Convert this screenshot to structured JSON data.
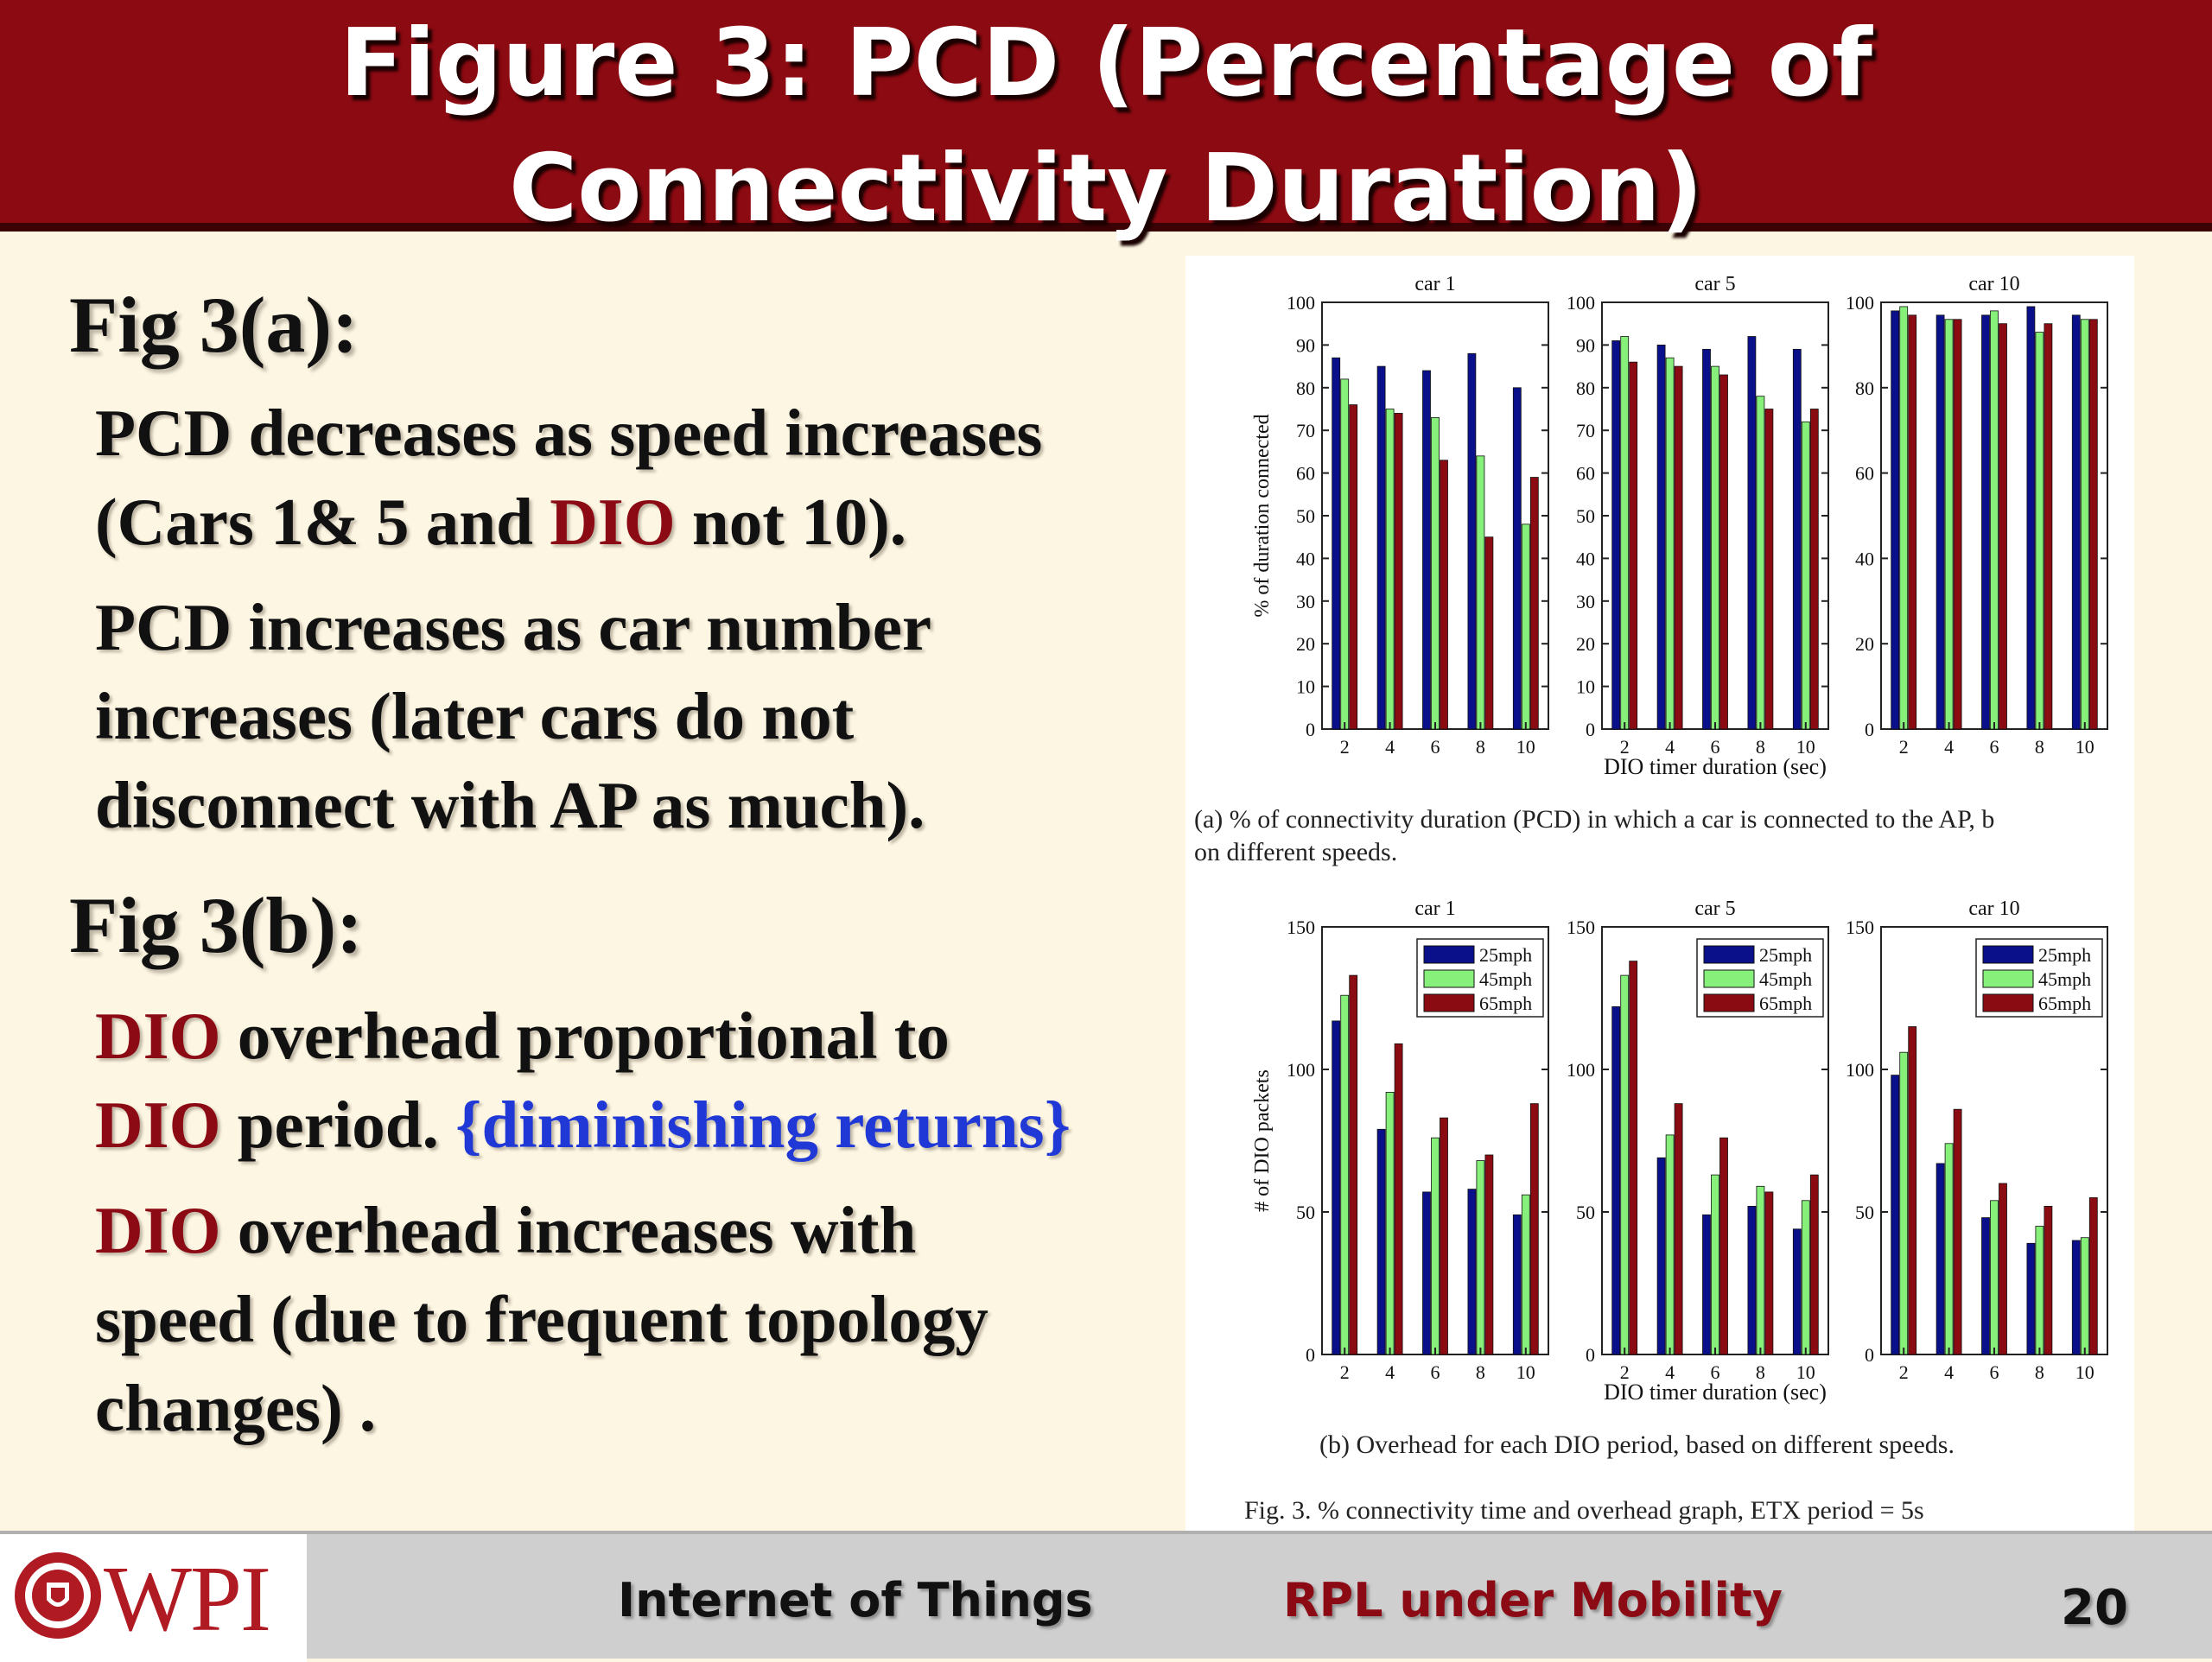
{
  "title": {
    "line1": "Figure 3: PCD (Percentage of",
    "line2": "Connectivity Duration)"
  },
  "left": {
    "fig_a_heading": "Fig 3(a):",
    "fig_a_p1": [
      {
        "text": "PCD decreases as speed increases",
        "color": "#111111"
      },
      {
        "text": "(Cars 1& 5 and ",
        "color": "#111111"
      },
      {
        "text": "DIO",
        "color": "#8b0a14"
      },
      {
        "text": " not 10).",
        "color": "#111111"
      }
    ],
    "fig_a_p2_lines": [
      "PCD increases as car number",
      "increases  (later cars do not",
      "disconnect with AP as much)."
    ],
    "fig_b_heading": "Fig 3(b):",
    "fig_b_p1": {
      "dio1": "DIO",
      "rest1": " overhead proportional to",
      "dio2": "DIO",
      "rest2": " period. ",
      "note": "{diminishing returns}"
    },
    "fig_b_p2": {
      "dio": "DIO",
      "rest1": " overhead increases with",
      "line2": "speed (due to frequent topology",
      "line3": "changes) ."
    }
  },
  "figure": {
    "caption_a_line1": "(a) % of connectivity duration (PCD) in which a car is connected to the AP, b",
    "caption_a_line2": "on different speeds.",
    "caption_b": "(b) Overhead for each DIO period, based on different speeds.",
    "caption_fig": "Fig. 3.   % connectivity time and overhead graph, ETX period = 5s"
  },
  "footer": {
    "logo_text": "WPI",
    "course": "Internet of Things",
    "topic": "RPL under Mobility",
    "page": "20"
  },
  "colors": {
    "title_bg": "#8c0a12",
    "accent_red": "#8b0a14",
    "accent_blue": "#1f38d6",
    "s25": "#0a0f8a",
    "s45": "#86f07a",
    "s65": "#8a0b12"
  },
  "chart_data": [
    {
      "type": "bar",
      "id": "pcd",
      "ylabel": "% of duration connected",
      "xlabel": "DIO timer duration (sec)",
      "panels": [
        {
          "title": "car 1",
          "categories": [
            "2",
            "4",
            "6",
            "8",
            "10"
          ],
          "ylim": [
            0,
            100
          ],
          "yticks": [
            0,
            10,
            20,
            30,
            40,
            50,
            60,
            70,
            80,
            90,
            100
          ],
          "series": [
            {
              "name": "25mph",
              "values": [
                87,
                85,
                84,
                88,
                80
              ]
            },
            {
              "name": "45mph",
              "values": [
                82,
                75,
                73,
                64,
                48
              ]
            },
            {
              "name": "65mph",
              "values": [
                76,
                74,
                63,
                45,
                59
              ]
            }
          ]
        },
        {
          "title": "car 5",
          "categories": [
            "2",
            "4",
            "6",
            "8",
            "10"
          ],
          "ylim": [
            0,
            100
          ],
          "yticks": [
            0,
            10,
            20,
            30,
            40,
            50,
            60,
            70,
            80,
            90,
            100
          ],
          "series": [
            {
              "name": "25mph",
              "values": [
                91,
                90,
                89,
                92,
                89
              ]
            },
            {
              "name": "45mph",
              "values": [
                92,
                87,
                85,
                78,
                72
              ]
            },
            {
              "name": "65mph",
              "values": [
                86,
                85,
                83,
                75,
                75
              ]
            }
          ]
        },
        {
          "title": "car 10",
          "categories": [
            "2",
            "4",
            "6",
            "8",
            "10"
          ],
          "ylim": [
            0,
            100
          ],
          "yticks": [
            0,
            20,
            40,
            60,
            80,
            100
          ],
          "series": [
            {
              "name": "25mph",
              "values": [
                98,
                97,
                97,
                99,
                97
              ]
            },
            {
              "name": "45mph",
              "values": [
                99,
                96,
                98,
                93,
                96
              ]
            },
            {
              "name": "65mph",
              "values": [
                97,
                96,
                95,
                95,
                96
              ]
            }
          ]
        }
      ]
    },
    {
      "type": "bar",
      "id": "overhead",
      "ylabel": "# of DIO packets",
      "xlabel": "DIO timer duration (sec)",
      "legend": [
        "25mph",
        "45mph",
        "65mph"
      ],
      "legend_position": "top-right",
      "panels": [
        {
          "title": "car 1",
          "categories": [
            "2",
            "4",
            "6",
            "8",
            "10"
          ],
          "ylim": [
            0,
            150
          ],
          "yticks": [
            0,
            50,
            100,
            150
          ],
          "series": [
            {
              "name": "25mph",
              "values": [
                117,
                79,
                57,
                58,
                49
              ]
            },
            {
              "name": "45mph",
              "values": [
                126,
                92,
                76,
                68,
                56
              ]
            },
            {
              "name": "65mph",
              "values": [
                133,
                109,
                83,
                70,
                88
              ]
            }
          ]
        },
        {
          "title": "car 5",
          "categories": [
            "2",
            "4",
            "6",
            "8",
            "10"
          ],
          "ylim": [
            0,
            150
          ],
          "yticks": [
            0,
            50,
            100,
            150
          ],
          "series": [
            {
              "name": "25mph",
              "values": [
                122,
                69,
                49,
                52,
                44
              ]
            },
            {
              "name": "45mph",
              "values": [
                133,
                77,
                63,
                59,
                54
              ]
            },
            {
              "name": "65mph",
              "values": [
                138,
                88,
                76,
                57,
                63
              ]
            }
          ]
        },
        {
          "title": "car 10",
          "categories": [
            "2",
            "4",
            "6",
            "8",
            "10"
          ],
          "ylim": [
            0,
            150
          ],
          "yticks": [
            0,
            50,
            100,
            150
          ],
          "series": [
            {
              "name": "25mph",
              "values": [
                98,
                67,
                48,
                39,
                40
              ]
            },
            {
              "name": "45mph",
              "values": [
                106,
                74,
                54,
                45,
                41
              ]
            },
            {
              "name": "65mph",
              "values": [
                115,
                86,
                60,
                52,
                55
              ]
            }
          ]
        }
      ]
    }
  ]
}
